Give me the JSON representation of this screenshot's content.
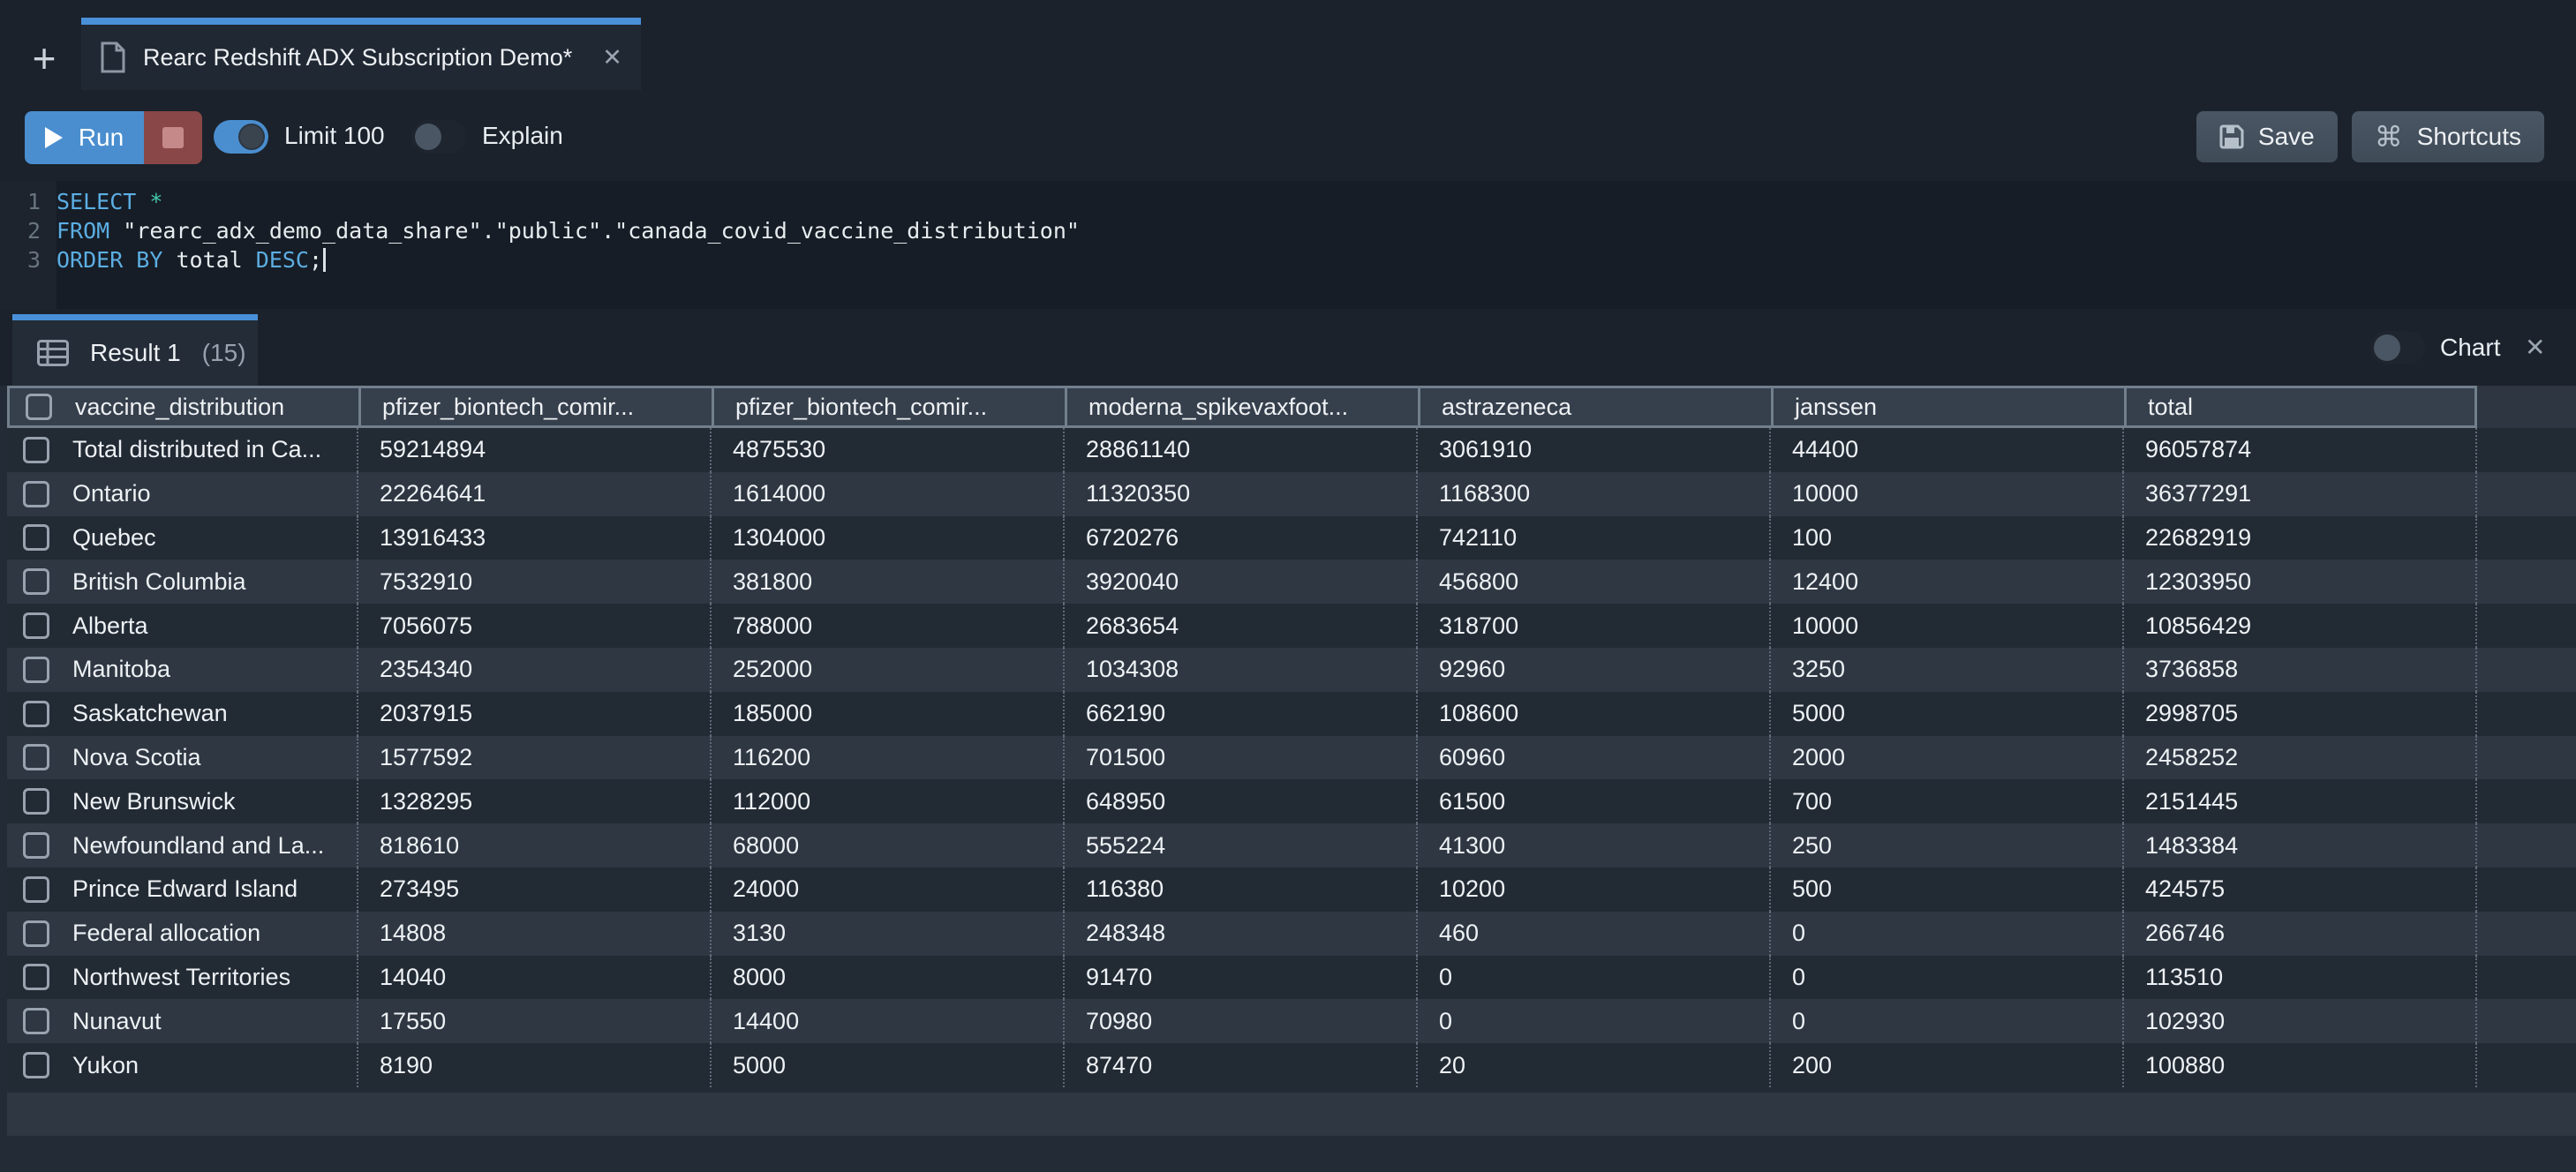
{
  "tabbar": {
    "new_tab_glyph": "+",
    "tab_title": "Rearc Redshift ADX Subscription Demo*",
    "close_glyph": "✕"
  },
  "toolbar": {
    "run_label": "Run",
    "limit_label": "Limit 100",
    "limit_state": "on",
    "explain_label": "Explain",
    "explain_state": "off",
    "save_label": "Save",
    "shortcuts_label": "Shortcuts",
    "shortcuts_glyph": "⌘"
  },
  "editor": {
    "lines": [
      {
        "num": "1",
        "segments": [
          {
            "text": "SELECT",
            "type": "kw"
          },
          {
            "text": " ",
            "type": "plain"
          },
          {
            "text": "*",
            "type": "star"
          }
        ]
      },
      {
        "num": "2",
        "segments": [
          {
            "text": "FROM",
            "type": "kw"
          },
          {
            "text": " \"rearc_adx_demo_data_share\".\"public\".\"canada_covid_vaccine_distribution\"",
            "type": "plain"
          }
        ]
      },
      {
        "num": "3",
        "segments": [
          {
            "text": "ORDER BY",
            "type": "kw"
          },
          {
            "text": " total ",
            "type": "plain"
          },
          {
            "text": "DESC",
            "type": "kw"
          },
          {
            "text": ";",
            "type": "plain"
          }
        ],
        "caret": true
      }
    ]
  },
  "resultbar": {
    "tab_label": "Result 1",
    "tab_count": "(15)",
    "chart_label": "Chart",
    "chart_state": "off",
    "close_glyph": "✕"
  },
  "table": {
    "columns": [
      "vaccine_distribution",
      "pfizer_biontech_comir...",
      "pfizer_biontech_comir...",
      "moderna_spikevaxfoot...",
      "astrazeneca",
      "janssen",
      "total"
    ],
    "rows": [
      [
        "Total distributed in Ca...",
        "59214894",
        "4875530",
        "28861140",
        "3061910",
        "44400",
        "96057874"
      ],
      [
        "Ontario",
        "22264641",
        "1614000",
        "11320350",
        "1168300",
        "10000",
        "36377291"
      ],
      [
        "Quebec",
        "13916433",
        "1304000",
        "6720276",
        "742110",
        "100",
        "22682919"
      ],
      [
        "British Columbia",
        "7532910",
        "381800",
        "3920040",
        "456800",
        "12400",
        "12303950"
      ],
      [
        "Alberta",
        "7056075",
        "788000",
        "2683654",
        "318700",
        "10000",
        "10856429"
      ],
      [
        "Manitoba",
        "2354340",
        "252000",
        "1034308",
        "92960",
        "3250",
        "3736858"
      ],
      [
        "Saskatchewan",
        "2037915",
        "185000",
        "662190",
        "108600",
        "5000",
        "2998705"
      ],
      [
        "Nova Scotia",
        "1577592",
        "116200",
        "701500",
        "60960",
        "2000",
        "2458252"
      ],
      [
        "New Brunswick",
        "1328295",
        "112000",
        "648950",
        "61500",
        "700",
        "2151445"
      ],
      [
        "Newfoundland and La...",
        "818610",
        "68000",
        "555224",
        "41300",
        "250",
        "1483384"
      ],
      [
        "Prince Edward Island",
        "273495",
        "24000",
        "116380",
        "10200",
        "500",
        "424575"
      ],
      [
        "Federal allocation",
        "14808",
        "3130",
        "248348",
        "460",
        "0",
        "266746"
      ],
      [
        "Northwest Territories",
        "14040",
        "8000",
        "91470",
        "0",
        "0",
        "113510"
      ],
      [
        "Nunavut",
        "17550",
        "14400",
        "70980",
        "0",
        "0",
        "102930"
      ],
      [
        "Yukon",
        "8190",
        "5000",
        "87470",
        "20",
        "200",
        "100880"
      ]
    ]
  },
  "icons": {
    "new_tab": "plus-icon",
    "tab_file": "document-icon",
    "run": "play-icon",
    "stop": "stop-square-icon",
    "save": "floppy-icon",
    "shortcuts": "command-icon",
    "result_tab": "table-grid-icon",
    "close": "x-icon"
  },
  "colors": {
    "accent_blue": "#4a90d9",
    "run_blue": "#4a8ecf",
    "stop_red": "#8a4747",
    "keyword_blue": "#5caee3",
    "star_teal": "#43c9ae",
    "row_dark": "#222a34",
    "row_light": "#2e3742",
    "header_bg": "#363f4c"
  }
}
